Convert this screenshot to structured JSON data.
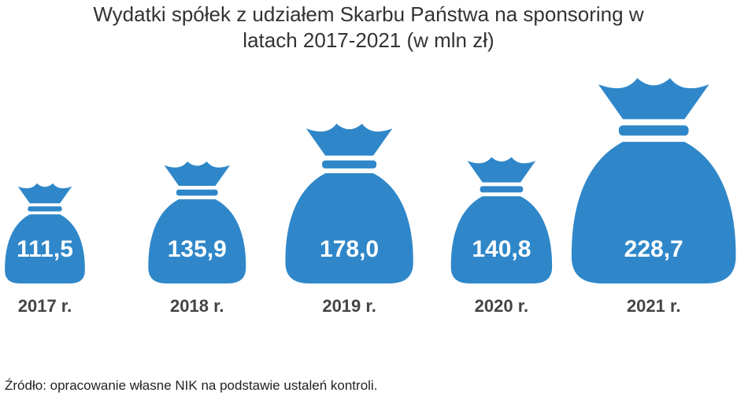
{
  "chart_data": {
    "type": "pictogram",
    "title": "Wydatki spółek z udziałem Skarbu Państwa na sponsoring w latach 2017-2021 (w mln zł)",
    "categories": [
      "2017 r.",
      "2018 r.",
      "2019 r.",
      "2020 r.",
      "2021 r."
    ],
    "values": [
      111.5,
      135.9,
      178.0,
      140.8,
      228.7
    ],
    "value_labels": [
      "111,5",
      "135,9",
      "178,0",
      "140,8",
      "228,7"
    ],
    "color": "#2f87c9",
    "source": "Źródło: opracowanie własne NIK na podstawie ustaleń kontroli."
  }
}
